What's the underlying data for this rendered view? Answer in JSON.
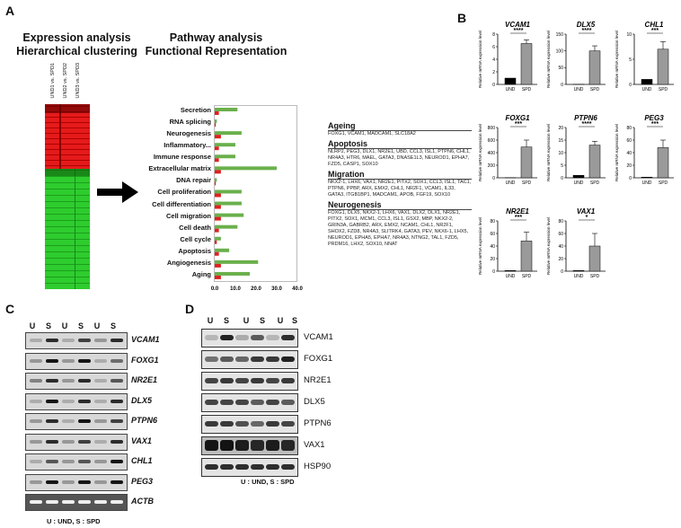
{
  "panelA": {
    "letter": "A",
    "heatmap_title": [
      "Expression analysis",
      "Hierarchical clustering"
    ],
    "pathway_title": [
      "Pathway analysis",
      "Functional Representation"
    ],
    "heatmap_columns": [
      "UND1 vs. SPD1",
      "UND2 vs. SPD2",
      "UND3 vs. SPD3"
    ],
    "pathway_axis_ticks": [
      "0.0",
      "10.0",
      "20.0",
      "30.0",
      "40.0"
    ]
  },
  "gene_groups": [
    {
      "title": "Ageing",
      "genes": "FOXG1, VCAM1, MADCAM1, SLC18A2"
    },
    {
      "title": "Apoptosis",
      "genes": "NLRP2, PEG3, DLX1, NR2E1, UBD, CCL3, ISL1, PTPN6, CHL1, NR4A3, HTR6, MAEL, GATA3, DNASE1L3, NEUROD1, EPHA7, FZD5, CASP1, SOX10"
    },
    {
      "title": "Migration",
      "genes": "NKX2-1, LHX6, VAX1, NR2E1, PITX2, SOX1, CCL3, ISL1, TAC1, PTPN6, PPBP, ARX, EMX2, CHL1, NR2F1, VCAM1, IL33, GATA3, ITGB1BP1, MADCAM1, APOB, FGF19, SOX10"
    },
    {
      "title": "Neurogenesis",
      "genes": "FOXG1, DLX5, NKX2-1, LHX6, VAX1, DLX2, DLX1, NR2E1, PITX2, SOX1, MCM1, CCL3, ISL1, GSX2, MBP, NKX2-2, GRIN3A, GABRB2, ARX, EMX2, NCAM1, CHL1, NR2F1, SHOX2, FZD8, NR4A3, SLITRK4, GATA3, PEV, NKX6-1, LHX5, NEUROD1, EPHA5, EPHA7, NR4A3, NTNG2, TAL1, FZD5, PRDM16, LHX2, SOX10, NNAT"
    }
  ],
  "chart_data": [
    {
      "type": "bar",
      "title": "Pathway analysis / Functional Representation",
      "orientation": "horizontal",
      "categories": [
        "Secretion",
        "RNA splicing",
        "Neurogenesis",
        "Inflammatory...",
        "Immune response",
        "Extracellular matrix",
        "DNA repair",
        "Cell proliferation",
        "Cell differentiation",
        "Cell migration",
        "Cell death",
        "Cell cycle",
        "Apoptosis",
        "Angiogenesis",
        "Aging"
      ],
      "series": [
        {
          "name": "green",
          "color": "#6ab04c",
          "values": [
            11,
            1,
            13,
            10,
            10,
            30,
            1,
            13,
            13,
            14,
            11,
            3,
            7,
            21,
            17
          ]
        },
        {
          "name": "red",
          "color": "#e02020",
          "values": [
            2,
            0.5,
            3,
            2,
            2,
            3,
            0.5,
            3,
            3,
            3,
            2,
            1,
            2,
            3,
            3
          ]
        }
      ],
      "xlim": [
        0,
        40
      ],
      "xticks": [
        "0.0",
        "10.0",
        "20.0",
        "30.0",
        "40.0"
      ]
    },
    {
      "type": "bar",
      "panel": "B",
      "ylabel": "Relative mRNA expression level",
      "categories": [
        "UND",
        "SPD"
      ],
      "plots": [
        {
          "gene": "VCAM1",
          "values": [
            1,
            6.5
          ],
          "error": [
            0,
            0.6
          ],
          "sig": "****",
          "ylim": [
            0,
            8
          ],
          "ticks": [
            "0",
            "2",
            "4",
            "6",
            "8"
          ]
        },
        {
          "gene": "DLX5",
          "values": [
            0.5,
            100
          ],
          "error": [
            0,
            15
          ],
          "sig": "****",
          "ylim": [
            0,
            150
          ],
          "ticks": [
            "0",
            "50",
            "100",
            "150"
          ]
        },
        {
          "gene": "CHL1",
          "values": [
            1,
            7
          ],
          "error": [
            0,
            1.5
          ],
          "sig": "***",
          "ylim": [
            0,
            10
          ],
          "ticks": [
            "0",
            "5",
            "10"
          ]
        },
        {
          "gene": "FOXG1",
          "values": [
            2,
            490
          ],
          "error": [
            0,
            110
          ],
          "sig": "***",
          "ylim": [
            0,
            800
          ],
          "ticks": [
            "0",
            "200",
            "400",
            "600",
            "800"
          ]
        },
        {
          "gene": "PTPN6",
          "values": [
            1,
            13
          ],
          "error": [
            0,
            1.5
          ],
          "sig": "****",
          "ylim": [
            0,
            20
          ],
          "ticks": [
            "0",
            "5",
            "10",
            "15",
            "20"
          ]
        },
        {
          "gene": "PEG3",
          "values": [
            1,
            48
          ],
          "error": [
            0,
            12
          ],
          "sig": "***",
          "ylim": [
            0,
            80
          ],
          "ticks": [
            "0",
            "20",
            "40",
            "60",
            "80"
          ]
        },
        {
          "gene": "NR2E1",
          "values": [
            1,
            48
          ],
          "error": [
            0,
            14
          ],
          "sig": "***",
          "ylim": [
            0,
            80
          ],
          "ticks": [
            "0",
            "20",
            "40",
            "60",
            "80"
          ]
        },
        {
          "gene": "VAX1",
          "values": [
            1,
            40
          ],
          "error": [
            0,
            20
          ],
          "sig": "*",
          "ylim": [
            0,
            80
          ],
          "ticks": [
            "0",
            "20",
            "40",
            "60",
            "80"
          ]
        }
      ]
    }
  ],
  "panelB": {
    "letter": "B"
  },
  "panelC": {
    "letter": "C",
    "lanes": [
      "U",
      "S",
      "U",
      "S",
      "U",
      "S"
    ],
    "genes": [
      "VCAM1",
      "FOXG1",
      "NR2E1",
      "DLX5",
      "PTPN6",
      "VAX1",
      "CHL1",
      "PEG3",
      "ACTB"
    ],
    "legend": "U : UND, S : SPD"
  },
  "panelD": {
    "letter": "D",
    "lanes": [
      "U",
      "S",
      "U",
      "S",
      "U",
      "S"
    ],
    "proteins": [
      "VCAM1",
      "FOXG1",
      "NR2E1",
      "DLX5",
      "PTPN6",
      "VAX1",
      "HSP90"
    ],
    "legend": "U : UND, S : SPD"
  }
}
